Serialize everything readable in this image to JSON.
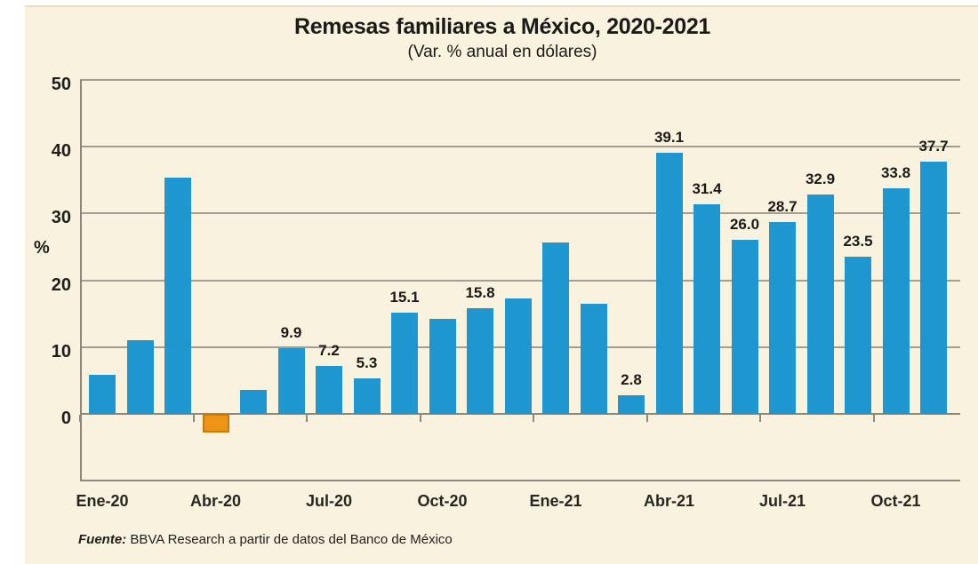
{
  "source": {
    "prefix": "Fuente:",
    "rest": " BBVA Research a partir de datos del Banco de México"
  },
  "chart_data": {
    "type": "bar",
    "title": "Remesas familiares a México, 2020-2021",
    "subtitle": "(Var. % anual en dólares)",
    "ylabel": "%",
    "ylim": [
      -10,
      50
    ],
    "y_ticks": [
      0,
      10,
      20,
      30,
      40,
      50
    ],
    "grid": true,
    "legend": "none",
    "x_tick_interval": 3,
    "x_axis_labels": [
      "Ene-20",
      "Abr-20",
      "Jul-20",
      "Oct-20",
      "Ene-21",
      "Abr-21",
      "Jul-21",
      "Oct-21"
    ],
    "categories": [
      "Ene-20",
      "Feb-20",
      "Mar-20",
      "Abr-20",
      "May-20",
      "Jun-20",
      "Jul-20",
      "Ago-20",
      "Sep-20",
      "Oct-20",
      "Nov-20",
      "Dic-20",
      "Ene-21",
      "Feb-21",
      "Mar-21",
      "Abr-21",
      "May-21",
      "Jun-21",
      "Jul-21",
      "Ago-21",
      "Sep-21",
      "Oct-21",
      "Nov-21"
    ],
    "values": [
      5.8,
      11.0,
      35.4,
      -2.8,
      3.6,
      9.9,
      7.2,
      5.3,
      15.1,
      14.2,
      15.8,
      17.3,
      25.6,
      16.5,
      2.8,
      39.1,
      31.4,
      26.0,
      28.7,
      32.9,
      23.5,
      33.8,
      37.7
    ],
    "value_labels": [
      null,
      null,
      null,
      null,
      null,
      "9.9",
      "7.2",
      "5.3",
      "15.1",
      null,
      "15.8",
      null,
      null,
      null,
      "2.8",
      "39.1",
      "31.4",
      "26.0",
      "28.7",
      "32.9",
      "23.5",
      "33.8",
      "37.7"
    ],
    "colors": {
      "bar_positive": "#1E96D0",
      "bar_negative": "#EE9414",
      "bar_negative_border": "#C47C10",
      "background": "#F8F2DE",
      "gridline": "#A19E94",
      "axis": "#8B887E",
      "text": "#1A1A18"
    }
  }
}
